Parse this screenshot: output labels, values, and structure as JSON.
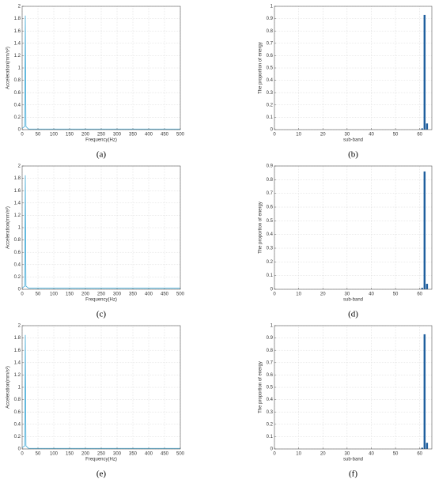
{
  "chart_data": [
    {
      "type": "line",
      "caption": "(a)",
      "xlabel": "Frequency(Hz)",
      "ylabel": "Acceleration(mm/s²)",
      "color": "#3fa9d6",
      "x": [
        0,
        8,
        10,
        12,
        20,
        100,
        200,
        300,
        400,
        500
      ],
      "values": [
        0.02,
        0.05,
        1.85,
        0.05,
        0.01,
        0.01,
        0.01,
        0.01,
        0.01,
        0.01
      ],
      "xlim": [
        0,
        500
      ],
      "xticks": [
        0,
        50,
        100,
        150,
        200,
        250,
        300,
        350,
        400,
        450,
        500
      ],
      "ylim": [
        0,
        2
      ],
      "yticks": [
        0,
        0.2,
        0.4,
        0.6,
        0.8,
        1,
        1.2,
        1.4,
        1.6,
        1.8,
        2
      ],
      "grid": true
    },
    {
      "type": "bar",
      "caption": "(b)",
      "xlabel": "sub-band",
      "ylabel": "The proportion of energy",
      "color": "#1f5f9e",
      "x": [
        61,
        62,
        63
      ],
      "values": [
        0.01,
        0.93,
        0.05
      ],
      "xlim": [
        0,
        65
      ],
      "xticks": [
        0,
        10,
        20,
        30,
        40,
        50,
        60
      ],
      "ylim": [
        0,
        1
      ],
      "yticks": [
        0,
        0.1,
        0.2,
        0.3,
        0.4,
        0.5,
        0.6,
        0.7,
        0.8,
        0.9,
        1
      ],
      "grid": true
    },
    {
      "type": "line",
      "caption": "(c)",
      "xlabel": "Frequency(Hz)",
      "ylabel": "Acceleration(mm/s²)",
      "color": "#3fa9d6",
      "x": [
        0,
        8,
        10,
        12,
        20,
        100,
        200,
        300,
        400,
        500
      ],
      "values": [
        0.02,
        0.05,
        1.85,
        0.05,
        0.02,
        0.02,
        0.02,
        0.02,
        0.02,
        0.02
      ],
      "xlim": [
        0,
        500
      ],
      "xticks": [
        0,
        50,
        100,
        150,
        200,
        250,
        300,
        350,
        400,
        450,
        500
      ],
      "ylim": [
        0,
        2
      ],
      "yticks": [
        0,
        0.2,
        0.4,
        0.6,
        0.8,
        1,
        1.2,
        1.4,
        1.6,
        1.8,
        2
      ],
      "grid": true
    },
    {
      "type": "bar",
      "caption": "(d)",
      "xlabel": "sub-band",
      "ylabel": "The proportion of energy",
      "color": "#1f5f9e",
      "x": [
        61,
        62,
        63
      ],
      "values": [
        0.01,
        0.86,
        0.04
      ],
      "xlim": [
        0,
        65
      ],
      "xticks": [
        0,
        10,
        20,
        30,
        40,
        50,
        60
      ],
      "ylim": [
        0,
        0.9
      ],
      "yticks": [
        0,
        0.1,
        0.2,
        0.3,
        0.4,
        0.5,
        0.6,
        0.7,
        0.8,
        0.9
      ],
      "grid": true
    },
    {
      "type": "line",
      "caption": "(e)",
      "xlabel": "Frequency(Hz)",
      "ylabel": "Acceleration(mm/s²)",
      "color": "#3fa9d6",
      "x": [
        0,
        8,
        10,
        12,
        20,
        100,
        200,
        300,
        400,
        500
      ],
      "values": [
        0.02,
        0.05,
        1.85,
        0.05,
        0.01,
        0.01,
        0.01,
        0.01,
        0.01,
        0.01
      ],
      "xlim": [
        0,
        500
      ],
      "xticks": [
        0,
        50,
        100,
        150,
        200,
        250,
        300,
        350,
        400,
        450,
        500
      ],
      "ylim": [
        0,
        2
      ],
      "yticks": [
        0,
        0.2,
        0.4,
        0.6,
        0.8,
        1,
        1.2,
        1.4,
        1.6,
        1.8,
        2
      ],
      "grid": true
    },
    {
      "type": "bar",
      "caption": "(f)",
      "xlabel": "sub-band",
      "ylabel": "The proportion of energy",
      "color": "#1f5f9e",
      "x": [
        61,
        62,
        63
      ],
      "values": [
        0.01,
        0.93,
        0.05
      ],
      "xlim": [
        0,
        65
      ],
      "xticks": [
        0,
        10,
        20,
        30,
        40,
        50,
        60
      ],
      "ylim": [
        0,
        1
      ],
      "yticks": [
        0,
        0.1,
        0.2,
        0.3,
        0.4,
        0.5,
        0.6,
        0.7,
        0.8,
        0.9,
        1
      ],
      "grid": true
    }
  ]
}
